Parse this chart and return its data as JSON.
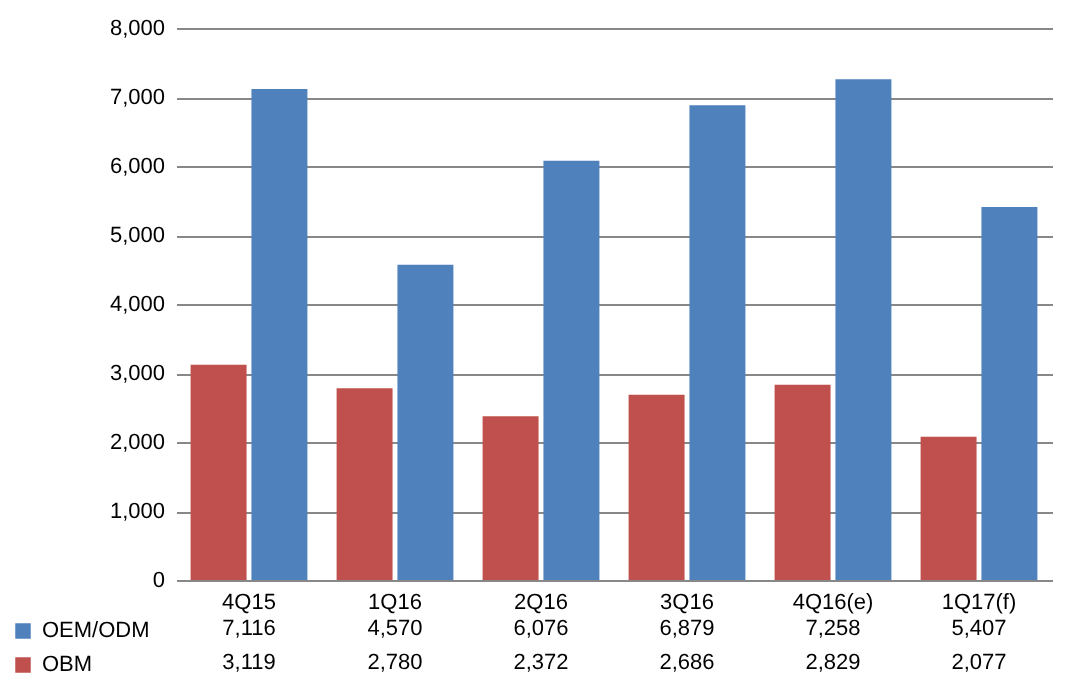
{
  "chart_data": {
    "type": "bar",
    "categories": [
      "4Q15",
      "1Q16",
      "2Q16",
      "3Q16",
      "4Q16(e)",
      "1Q17(f)"
    ],
    "series": [
      {
        "name": "OEM/ODM",
        "color": "#4f81bd",
        "values": [
          7116,
          4570,
          6076,
          6879,
          7258,
          5407
        ],
        "value_labels": [
          "7,116",
          "4,570",
          "6,076",
          "6,879",
          "7,258",
          "5,407"
        ]
      },
      {
        "name": "OBM",
        "color": "#c0504d",
        "values": [
          3119,
          2780,
          2372,
          2686,
          2829,
          2077
        ],
        "value_labels": [
          "3,119",
          "2,780",
          "2,372",
          "2,686",
          "2,829",
          "2,077"
        ]
      }
    ],
    "ylim": [
      0,
      8000
    ],
    "yticks": [
      0,
      {
        "value": 1000,
        "label": "1,000"
      },
      {
        "value": 2000,
        "label": "2,000"
      },
      {
        "value": 3000,
        "label": "3,000"
      },
      {
        "value": 4000,
        "label": "4,000"
      },
      {
        "value": 5000,
        "label": "5,000"
      },
      {
        "value": 6000,
        "label": "6,000"
      },
      {
        "value": 7000,
        "label": "7,000"
      },
      {
        "value": 8000,
        "label": "8,000"
      }
    ],
    "grid": "y",
    "legend": "bottom"
  }
}
